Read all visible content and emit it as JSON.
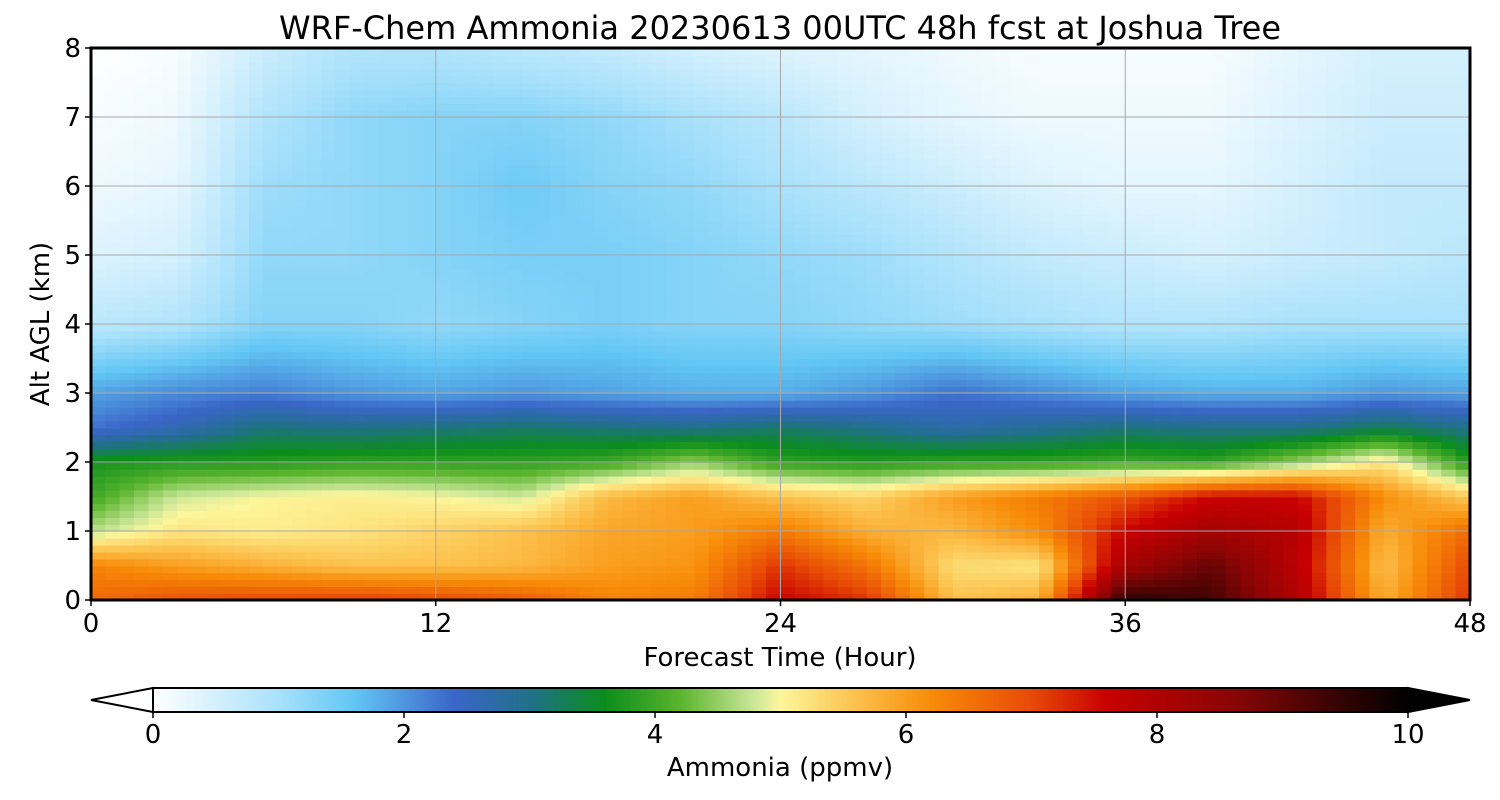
{
  "chart_data": {
    "type": "heatmap",
    "title": "WRF-Chem Ammonia  20230613 00UTC 48h fcst at Joshua Tree",
    "xlabel": "Forecast Time (Hour)",
    "ylabel": "Alt AGL (km)",
    "xlim": [
      0,
      48
    ],
    "ylim": [
      0,
      8
    ],
    "x_ticks": [
      "0",
      "12",
      "24",
      "36",
      "48"
    ],
    "y_ticks": [
      "0",
      "1",
      "2",
      "3",
      "4",
      "5",
      "6",
      "7",
      "8"
    ],
    "grid": true,
    "x": [
      0,
      3,
      6,
      9,
      12,
      15,
      18,
      21,
      24,
      27,
      30,
      33,
      36,
      39,
      42,
      45,
      48
    ],
    "y": [
      0,
      0.5,
      1,
      1.5,
      2,
      2.5,
      3,
      4,
      5,
      6,
      7,
      8
    ],
    "z": [
      [
        6.6,
        6.9,
        7.0,
        7.1,
        7.0,
        6.8,
        6.3,
        6.4,
        7.6,
        7.2,
        5.6,
        5.8,
        9.6,
        9.3,
        8.0,
        5.8,
        7.2
      ],
      [
        6.3,
        6.0,
        5.8,
        5.6,
        5.6,
        5.7,
        6.0,
        6.1,
        7.2,
        6.5,
        5.3,
        5.2,
        8.2,
        9.0,
        7.8,
        5.6,
        7.0
      ],
      [
        4.7,
        5.2,
        5.1,
        5.2,
        5.4,
        5.6,
        5.9,
        6.0,
        6.4,
        5.8,
        5.7,
        6.2,
        7.6,
        8.2,
        7.9,
        5.8,
        6.6
      ],
      [
        4.0,
        4.8,
        5.0,
        5.1,
        5.0,
        4.8,
        5.7,
        6.0,
        5.6,
        5.4,
        6.0,
        6.4,
        6.9,
        7.6,
        7.6,
        6.2,
        5.5
      ],
      [
        3.7,
        3.8,
        3.8,
        3.9,
        3.9,
        3.9,
        4.0,
        4.5,
        3.9,
        3.8,
        3.9,
        3.9,
        4.0,
        3.9,
        4.5,
        5.2,
        3.8
      ],
      [
        2.3,
        2.6,
        3.1,
        3.0,
        3.1,
        3.2,
        3.1,
        3.0,
        3.2,
        3.0,
        2.7,
        2.9,
        3.1,
        3.0,
        3.0,
        3.3,
        3.0
      ],
      [
        1.9,
        2.1,
        2.2,
        2.0,
        1.9,
        2.0,
        1.9,
        1.8,
        1.8,
        2.0,
        2.3,
        2.1,
        1.9,
        1.8,
        1.8,
        2.0,
        1.9
      ],
      [
        0.8,
        0.9,
        1.3,
        1.3,
        1.2,
        1.3,
        1.4,
        1.3,
        1.3,
        1.2,
        1.1,
        1.0,
        0.9,
        0.9,
        1.0,
        1.0,
        1.0
      ],
      [
        0.4,
        0.5,
        1.2,
        1.2,
        1.3,
        1.4,
        1.4,
        1.3,
        1.2,
        1.1,
        0.9,
        0.7,
        0.6,
        0.5,
        0.6,
        0.7,
        0.8
      ],
      [
        0.2,
        0.3,
        1.1,
        1.2,
        1.3,
        1.5,
        1.3,
        1.2,
        1.0,
        0.8,
        0.6,
        0.4,
        0.3,
        0.3,
        0.5,
        0.7,
        0.7
      ],
      [
        0.1,
        0.2,
        0.9,
        1.2,
        1.3,
        1.3,
        1.2,
        1.0,
        0.8,
        0.5,
        0.3,
        0.2,
        0.2,
        0.2,
        0.4,
        0.6,
        0.6
      ],
      [
        0.0,
        0.1,
        0.6,
        0.9,
        0.9,
        0.8,
        0.7,
        0.5,
        0.4,
        0.3,
        0.2,
        0.1,
        0.1,
        0.1,
        0.3,
        0.5,
        0.5
      ]
    ],
    "colorbar": {
      "label": "Ammonia  (ppmv)",
      "min": 0,
      "max": 10,
      "ticks": [
        "0",
        "2",
        "4",
        "6",
        "8",
        "10"
      ],
      "extend": "both",
      "stops": [
        {
          "v": 0.0,
          "c": "#ffffff"
        },
        {
          "v": 1.0,
          "c": "#a9e1fb"
        },
        {
          "v": 1.6,
          "c": "#62c6f4"
        },
        {
          "v": 2.4,
          "c": "#3a66c8"
        },
        {
          "v": 3.0,
          "c": "#20708a"
        },
        {
          "v": 3.6,
          "c": "#0b8d1b"
        },
        {
          "v": 4.2,
          "c": "#5ab42e"
        },
        {
          "v": 4.8,
          "c": "#cde89a"
        },
        {
          "v": 5.0,
          "c": "#fdf69b"
        },
        {
          "v": 5.6,
          "c": "#fcc14c"
        },
        {
          "v": 6.2,
          "c": "#f88c08"
        },
        {
          "v": 7.0,
          "c": "#e84a06"
        },
        {
          "v": 7.6,
          "c": "#c80000"
        },
        {
          "v": 8.6,
          "c": "#8a0505"
        },
        {
          "v": 9.4,
          "c": "#3a0404"
        },
        {
          "v": 10.0,
          "c": "#000000"
        }
      ]
    }
  }
}
